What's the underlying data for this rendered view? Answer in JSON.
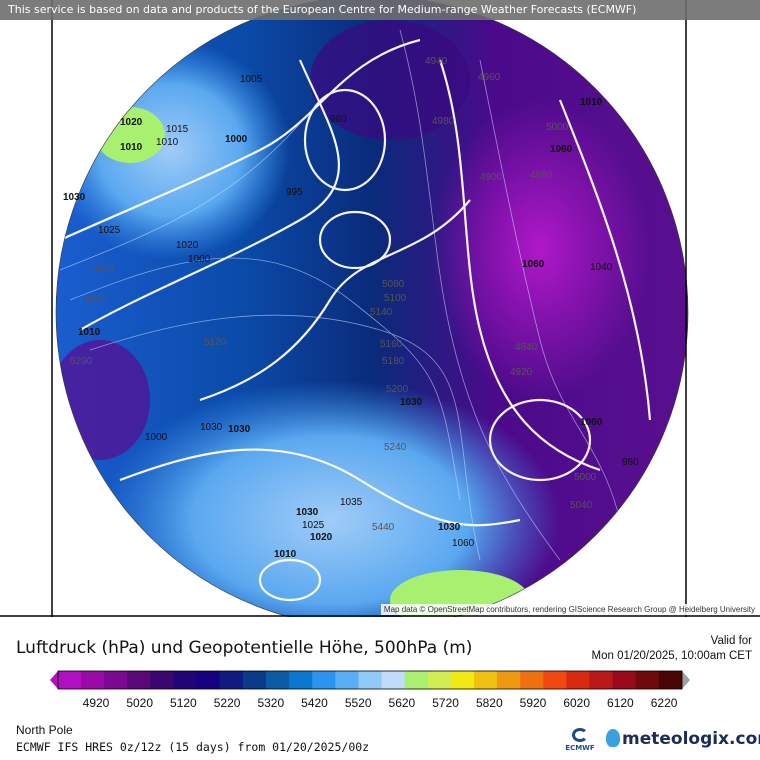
{
  "banner": "This service is based on data and products of the European Centre for Medium-range Weather Forecasts (ECMWF)",
  "attribution": "Map data © OpenStreetMap contributors, rendering GIScience Research Group @ Heidelberg University",
  "title": "Luftdruck (hPa) und Geopotentielle Höhe, 500hPa (m)",
  "valid_label": "Valid for",
  "valid_time": "Mon 01/20/2025, 10:00am CET",
  "region": "North Pole",
  "model": "ECMWF IFS HRES 0z/12z (15 days) from  01/20/2025/00z",
  "logos": {
    "ecmwf": "ECMWF",
    "meteologix": "meteologix.com"
  },
  "legend": {
    "ticks": [
      "4920",
      "5020",
      "5120",
      "5220",
      "5320",
      "5420",
      "5520",
      "5620",
      "5720",
      "5820",
      "5920",
      "6020",
      "6120",
      "6220"
    ],
    "colors": [
      "#b010c0",
      "#9a0aa8",
      "#7a0890",
      "#5a0878",
      "#3c0670",
      "#200478",
      "#140080",
      "#101a80",
      "#0a3a8a",
      "#0a5aa6",
      "#0a78d0",
      "#2a94f0",
      "#5aaef6",
      "#90c8f8",
      "#c0dcfa",
      "#a8f070",
      "#d0ec50",
      "#f0e810",
      "#f0c010",
      "#f09810",
      "#f07010",
      "#f04810",
      "#d82810",
      "#b81818",
      "#980a1a",
      "#700a0a",
      "#4a0505"
    ],
    "overflow_color": "#a0a0a0"
  },
  "contour_labels": {
    "pressure": [
      "1020",
      "1010",
      "1015",
      "1010",
      "1005",
      "1000",
      "995",
      "980",
      "1030",
      "1025",
      "1020",
      "1000",
      "1010",
      "1030",
      "1030",
      "1035",
      "1030",
      "1025",
      "1020",
      "1010",
      "1030",
      "1060",
      "1060",
      "1040",
      "1030",
      "1000",
      "1010",
      "1060",
      "1060",
      "980"
    ],
    "height": [
      "4940",
      "4960",
      "4980",
      "5000",
      "4880",
      "4900",
      "5180",
      "5080",
      "5080",
      "5100",
      "5120",
      "5140",
      "5160",
      "5180",
      "5200",
      "5240",
      "5290",
      "5440",
      "4840",
      "4920",
      "5000",
      "5040"
    ]
  }
}
